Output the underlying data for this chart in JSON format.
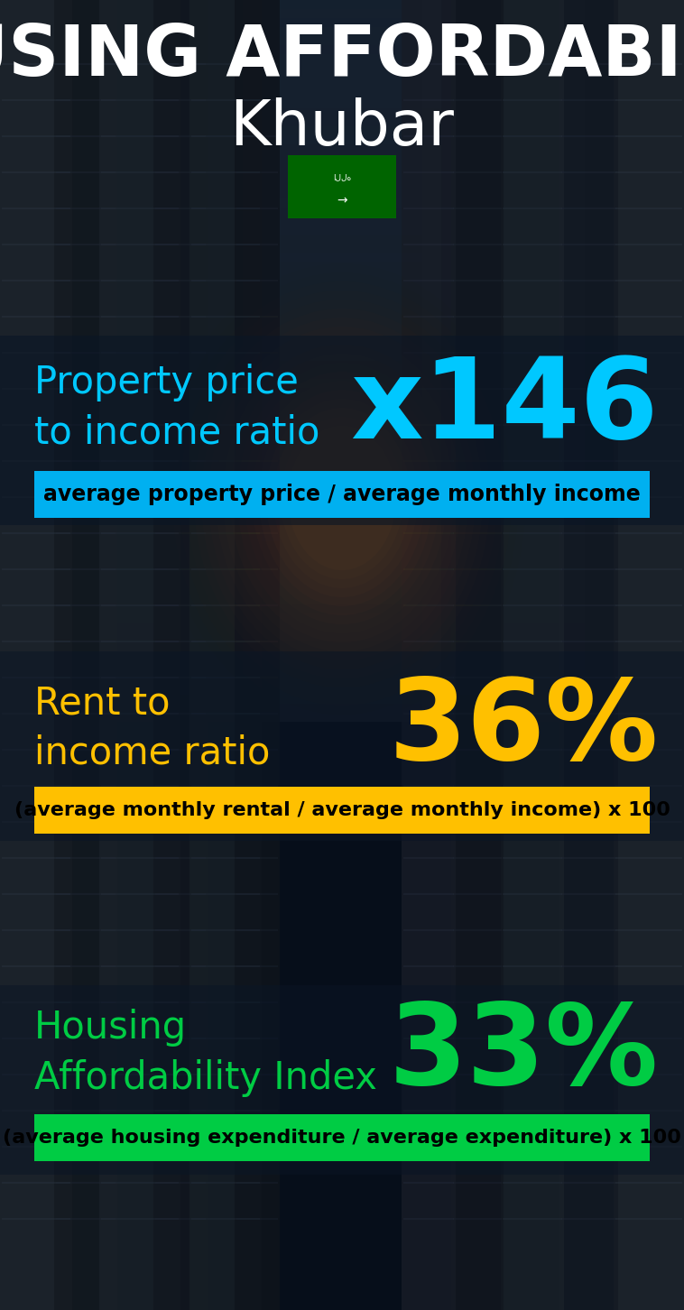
{
  "title_line1": "HOUSING AFFORDABILITY",
  "title_line2": "Khubar",
  "bg_color": "#060e1a",
  "section1_label": "Property price\nto income ratio",
  "section1_value": "x146",
  "section1_label_color": "#00c8ff",
  "section1_value_color": "#00c8ff",
  "section1_band_text": "average property price / average monthly income",
  "section1_band_bg": "#00b0f0",
  "section1_band_text_color": "#000000",
  "section2_label": "Rent to\nincome ratio",
  "section2_value": "36%",
  "section2_label_color": "#ffc000",
  "section2_value_color": "#ffc000",
  "section2_band_text": "(average monthly rental / average monthly income) x 100",
  "section2_band_bg": "#ffc000",
  "section2_band_text_color": "#000000",
  "section3_label": "Housing\nAffordability Index",
  "section3_value": "33%",
  "section3_label_color": "#00cc44",
  "section3_value_color": "#00cc44",
  "section3_band_text": "(average housing expenditure / average expenditure) x 100",
  "section3_band_bg": "#00cc44",
  "section3_band_text_color": "#000000"
}
